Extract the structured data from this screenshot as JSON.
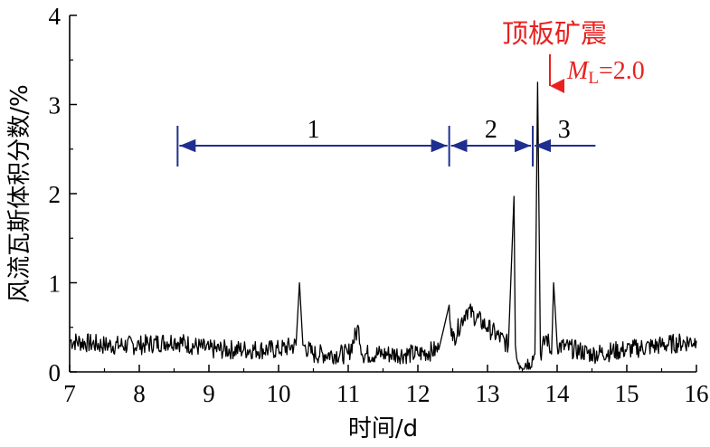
{
  "chart_data": {
    "type": "line",
    "title": "",
    "xlabel": "时间/d",
    "ylabel": "风流瓦斯体积分数/%",
    "xlim": [
      7,
      16
    ],
    "ylim": [
      0,
      4
    ],
    "x_ticks": [
      "7",
      "8",
      "9",
      "10",
      "11",
      "12",
      "13",
      "14",
      "15",
      "16"
    ],
    "y_ticks": [
      "0",
      "1",
      "2",
      "3",
      "4"
    ],
    "grid": false,
    "legend": "none",
    "line_color": "#000000",
    "phase_color": "#1f2f8f",
    "annotation_color": "#e8211f",
    "series": [
      {
        "x": [
          7.0,
          7.5,
          8.0,
          8.5,
          9.0,
          9.5,
          10.0,
          10.25,
          10.3,
          10.35,
          10.5,
          11.0,
          11.15,
          11.2,
          11.5,
          12.0,
          12.3,
          12.45,
          12.5,
          12.7,
          13.0,
          13.3,
          13.38,
          13.4,
          13.42,
          13.45,
          13.6,
          13.68,
          13.72,
          13.76,
          13.85,
          13.92,
          13.95,
          14.0,
          14.5,
          15.0,
          15.5,
          16.0
        ],
        "y": [
          0.35,
          0.3,
          0.3,
          0.35,
          0.25,
          0.25,
          0.25,
          0.3,
          1.0,
          0.3,
          0.2,
          0.2,
          0.5,
          0.2,
          0.2,
          0.2,
          0.25,
          0.75,
          0.35,
          0.7,
          0.5,
          0.3,
          1.97,
          0.3,
          0.15,
          0.1,
          0.1,
          0.2,
          3.25,
          0.2,
          0.4,
          0.2,
          1.0,
          0.3,
          0.2,
          0.25,
          0.3,
          0.35
        ]
      }
    ],
    "phases": [
      {
        "label": "1",
        "start": 8.55,
        "end": 12.45
      },
      {
        "label": "2",
        "start": 12.45,
        "end": 13.65
      },
      {
        "label": "3",
        "start": 13.65,
        "end": 14.55
      }
    ],
    "annotations": [
      {
        "text": "顶板矿震",
        "x": 13.9,
        "y": 3.6
      },
      {
        "text": "=2.0",
        "symbol": "M",
        "subscript": "L"
      }
    ]
  }
}
